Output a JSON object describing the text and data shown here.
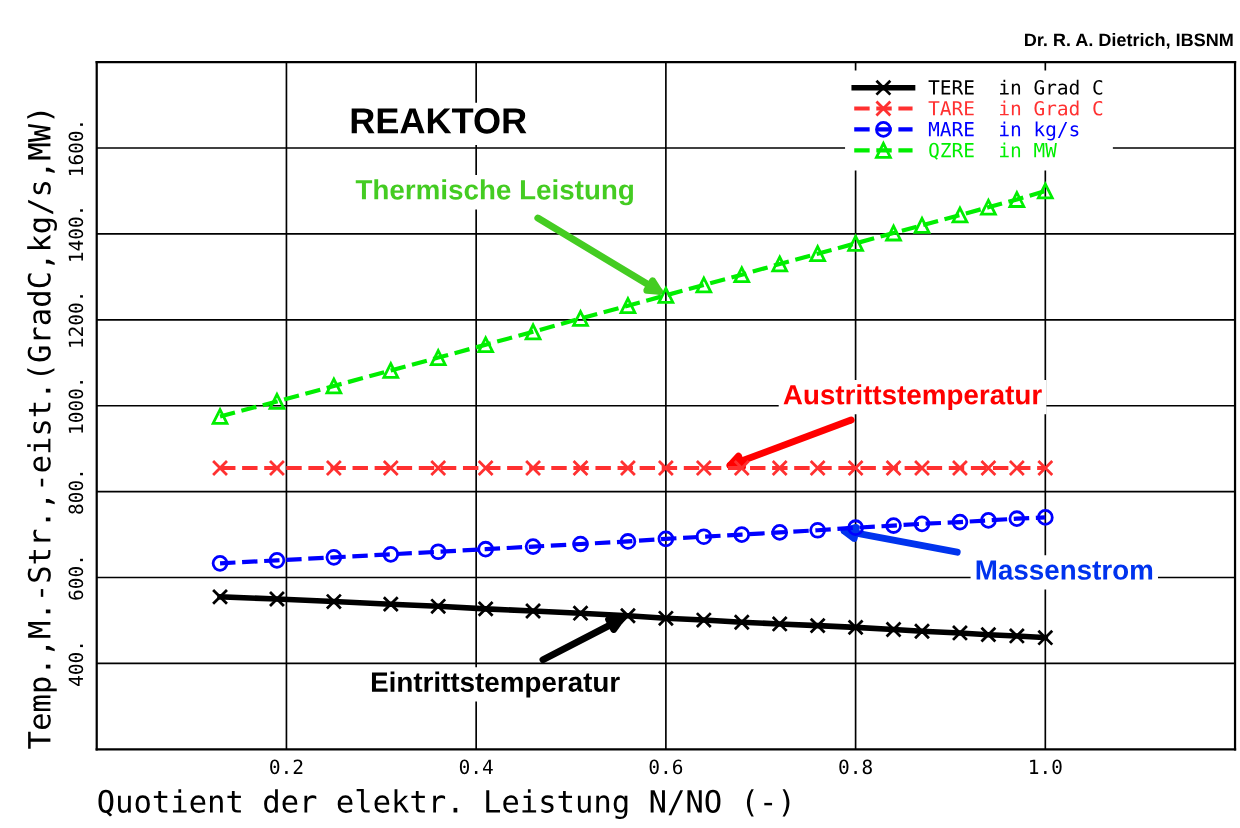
{
  "chart_data": {
    "type": "line",
    "title": "REAKTOR",
    "xlabel": "Quotient der elektr. Leistung N/NO (-)",
    "ylabel": "Temp.,M.-Str.,-eist.(GradC,kg/s,MW)",
    "x": [
      0.13,
      0.19,
      0.25,
      0.31,
      0.36,
      0.41,
      0.46,
      0.51,
      0.56,
      0.6,
      0.64,
      0.68,
      0.72,
      0.76,
      0.8,
      0.84,
      0.87,
      0.91,
      0.94,
      0.97,
      1.0
    ],
    "series": [
      {
        "name": "TERE  in Grad C",
        "color": "#000000",
        "marker": "cross",
        "line_style": "solid",
        "values": [
          555,
          550,
          544,
          538,
          533,
          527,
          522,
          517,
          511,
          505,
          501,
          496,
          492,
          488,
          484,
          479,
          475,
          471,
          467,
          464,
          460
        ]
      },
      {
        "name": "TARE  in Grad C",
        "color": "#ff3030",
        "marker": "cross",
        "line_style": "dashed",
        "values": [
          855,
          855,
          855,
          855,
          855,
          855,
          855,
          855,
          855,
          855,
          855,
          855,
          855,
          855,
          855,
          855,
          855,
          855,
          855,
          855,
          855
        ]
      },
      {
        "name": "MARE  in kg/s",
        "color": "#0000ff",
        "marker": "circle",
        "line_style": "dashed",
        "values": [
          633,
          640,
          647,
          654,
          660,
          666,
          672,
          678,
          684,
          690,
          695,
          700,
          705,
          710,
          716,
          721,
          725,
          729,
          733,
          737,
          740
        ]
      },
      {
        "name": "QZRE  in MW",
        "color": "#00ee00",
        "marker": "triangle",
        "line_style": "dashed",
        "values": [
          975,
          1010,
          1046,
          1082,
          1112,
          1142,
          1172,
          1203,
          1233,
          1257,
          1281,
          1305,
          1330,
          1354,
          1378,
          1402,
          1420,
          1444,
          1462,
          1480,
          1500
        ]
      }
    ],
    "xlim": [
      0,
      1.2
    ],
    "ylim": [
      200,
      1800
    ],
    "xticks": [
      0.2,
      0.4,
      0.6,
      0.8,
      {
        "value": 1.0,
        "label": "1.0"
      }
    ],
    "yticks": [
      {
        "value": 400,
        "label": "400."
      },
      {
        "value": 600,
        "label": "600."
      },
      {
        "value": 800,
        "label": "800."
      },
      {
        "value": 1000,
        "label": "1000."
      },
      {
        "value": 1200,
        "label": "1200."
      },
      {
        "value": 1400,
        "label": "1400."
      },
      {
        "value": 1600,
        "label": "1600."
      }
    ],
    "grid": true,
    "legend": "top right",
    "annotations": [
      {
        "text": "Thermische Leistung",
        "x": 0.6,
        "y": 1257
      },
      {
        "text": "Austrittstemperatur",
        "x": 0.66,
        "y": 855
      },
      {
        "text": "Massenstrom",
        "x": 0.78,
        "y": 712
      },
      {
        "text": "Eintrittstemperatur",
        "x": 0.56,
        "y": 511
      },
      "Dr. R. A. Dietrich, IBSNM"
    ]
  }
}
